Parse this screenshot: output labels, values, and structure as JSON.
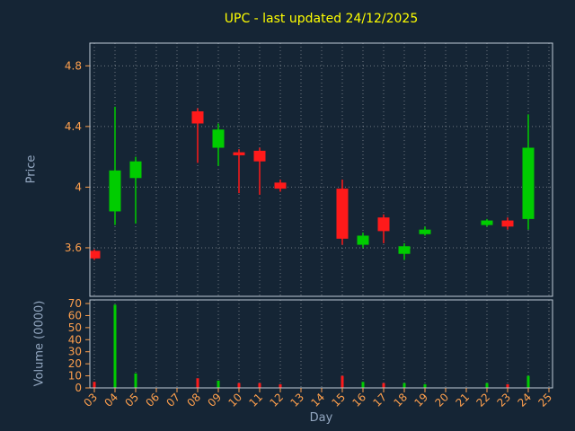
{
  "title": "UPC - last updated 24/12/2025",
  "axes": {
    "price_label": "Price",
    "volume_label": "Volume (0000)",
    "x_label": "Day"
  },
  "colors": {
    "background": "#152535",
    "title": "#ffff00",
    "axis_label": "#93a7c0",
    "tick_label": "#ffa04d",
    "frame": "#c0ccd8",
    "grid": "rgba(255,255,255,0.38)",
    "up": "#00cc00",
    "down": "#ff1a1a"
  },
  "chart_data": {
    "type": "candlestick",
    "title": "UPC - last updated 24/12/2025",
    "xlabel": "Day",
    "ylabel_price": "Price",
    "ylabel_volume": "Volume (0000)",
    "legend": "none",
    "grid": true,
    "x_tick_days": [
      3,
      4,
      5,
      6,
      7,
      8,
      9,
      10,
      11,
      12,
      13,
      14,
      15,
      16,
      17,
      18,
      19,
      20,
      21,
      22,
      23,
      24,
      25
    ],
    "x_ticks": [
      "03",
      "04",
      "05",
      "06",
      "07",
      "08",
      "09",
      "10",
      "11",
      "12",
      "13",
      "14",
      "15",
      "16",
      "17",
      "18",
      "19",
      "20",
      "21",
      "22",
      "23",
      "24",
      "25"
    ],
    "price_ticks": [
      "4.8",
      "4.4",
      "4",
      "3.6"
    ],
    "price_tick_values": [
      4.8,
      4.4,
      4.0,
      3.6
    ],
    "price_range": [
      3.28,
      4.95
    ],
    "volume_ticks": [
      70,
      60,
      50,
      40,
      30,
      20,
      10,
      0
    ],
    "volume_range": [
      0,
      73
    ],
    "candles": [
      {
        "day": 3,
        "open": 3.58,
        "high": 3.59,
        "low": 3.52,
        "close": 3.53,
        "volume": 5
      },
      {
        "day": 4,
        "open": 3.84,
        "high": 4.53,
        "low": 3.75,
        "close": 4.11,
        "volume": 69
      },
      {
        "day": 5,
        "open": 4.06,
        "high": 4.2,
        "low": 3.76,
        "close": 4.17,
        "volume": 12
      },
      {
        "day": 8,
        "open": 4.5,
        "high": 4.52,
        "low": 4.16,
        "close": 4.42,
        "volume": 8
      },
      {
        "day": 9,
        "open": 4.26,
        "high": 4.42,
        "low": 4.14,
        "close": 4.38,
        "volume": 6
      },
      {
        "day": 10,
        "open": 4.23,
        "high": 4.25,
        "low": 3.96,
        "close": 4.21,
        "volume": 4
      },
      {
        "day": 11,
        "open": 4.24,
        "high": 4.26,
        "low": 3.95,
        "close": 4.17,
        "volume": 4
      },
      {
        "day": 12,
        "open": 4.03,
        "high": 4.05,
        "low": 3.97,
        "close": 3.99,
        "volume": 3
      },
      {
        "day": 15,
        "open": 3.99,
        "high": 4.05,
        "low": 3.62,
        "close": 3.66,
        "volume": 10
      },
      {
        "day": 16,
        "open": 3.62,
        "high": 3.7,
        "low": 3.6,
        "close": 3.68,
        "volume": 5
      },
      {
        "day": 17,
        "open": 3.8,
        "high": 3.82,
        "low": 3.63,
        "close": 3.71,
        "volume": 4
      },
      {
        "day": 18,
        "open": 3.56,
        "high": 3.63,
        "low": 3.52,
        "close": 3.61,
        "volume": 4
      },
      {
        "day": 19,
        "open": 3.69,
        "high": 3.74,
        "low": 3.68,
        "close": 3.72,
        "volume": 3
      },
      {
        "day": 22,
        "open": 3.75,
        "high": 3.79,
        "low": 3.74,
        "close": 3.78,
        "volume": 4
      },
      {
        "day": 23,
        "open": 3.78,
        "high": 3.8,
        "low": 3.72,
        "close": 3.74,
        "volume": 3
      },
      {
        "day": 24,
        "open": 3.79,
        "high": 4.48,
        "low": 3.72,
        "close": 4.26,
        "volume": 10
      }
    ]
  }
}
